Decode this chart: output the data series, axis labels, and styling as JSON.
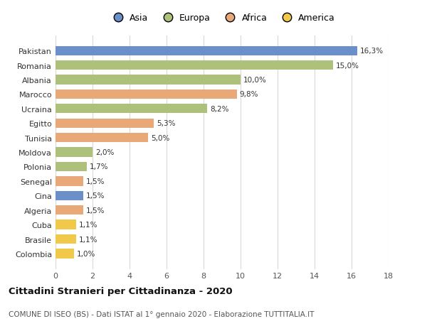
{
  "countries": [
    "Pakistan",
    "Romania",
    "Albania",
    "Marocco",
    "Ucraina",
    "Egitto",
    "Tunisia",
    "Moldova",
    "Polonia",
    "Senegal",
    "Cina",
    "Algeria",
    "Cuba",
    "Brasile",
    "Colombia"
  ],
  "values": [
    16.3,
    15.0,
    10.0,
    9.8,
    8.2,
    5.3,
    5.0,
    2.0,
    1.7,
    1.5,
    1.5,
    1.5,
    1.1,
    1.1,
    1.0
  ],
  "labels": [
    "16,3%",
    "15,0%",
    "10,0%",
    "9,8%",
    "8,2%",
    "5,3%",
    "5,0%",
    "2,0%",
    "1,7%",
    "1,5%",
    "1,5%",
    "1,5%",
    "1,1%",
    "1,1%",
    "1,0%"
  ],
  "continents": [
    "Asia",
    "Europa",
    "Europa",
    "Africa",
    "Europa",
    "Africa",
    "Africa",
    "Europa",
    "Europa",
    "Africa",
    "Asia",
    "Africa",
    "America",
    "America",
    "America"
  ],
  "colors": {
    "Asia": "#6b8fc8",
    "Europa": "#adc17a",
    "Africa": "#e8a878",
    "America": "#f0c84a"
  },
  "title": "Cittadini Stranieri per Cittadinanza - 2020",
  "subtitle": "COMUNE DI ISEO (BS) - Dati ISTAT al 1° gennaio 2020 - Elaborazione TUTTITALIA.IT",
  "xlim": [
    0,
    18
  ],
  "xticks": [
    0,
    2,
    4,
    6,
    8,
    10,
    12,
    14,
    16,
    18
  ],
  "background_color": "#ffffff",
  "grid_color": "#d8d8d8"
}
